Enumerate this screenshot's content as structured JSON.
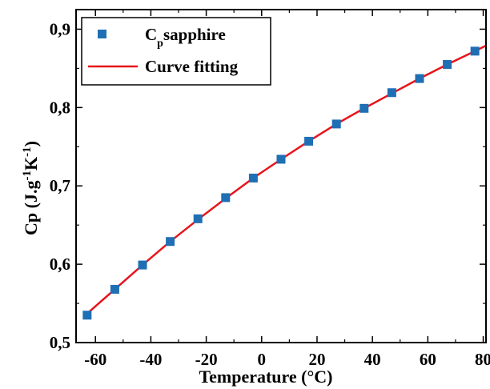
{
  "chart_data": {
    "type": "scatter",
    "xlabel": "Temperature (°C)",
    "ylabel_parts": [
      "Cp (J.g",
      "-1",
      "K",
      "-1",
      ")"
    ],
    "xlim": [
      -67,
      81
    ],
    "ylim": [
      0.5,
      0.925
    ],
    "xticks": [
      -60,
      -40,
      -20,
      0,
      20,
      40,
      60,
      80
    ],
    "xtick_labels": [
      "-60",
      "-40",
      "-20",
      "0",
      "20",
      "40",
      "60",
      "80"
    ],
    "yticks": [
      0.5,
      0.6,
      0.7,
      0.8,
      0.9
    ],
    "ytick_labels": [
      "0,5",
      "0,6",
      "0,7",
      "0,8",
      "0,9"
    ],
    "legend_position": "top-left",
    "series": [
      {
        "name_parts": [
          "C",
          "p",
          "sapphire"
        ],
        "kind": "markers",
        "color": "#1f6fb4",
        "x": [
          -63,
          -53,
          -43,
          -33,
          -23,
          -13,
          -3,
          7,
          17,
          27,
          37,
          47,
          57,
          67,
          77
        ],
        "y": [
          0.535,
          0.568,
          0.599,
          0.629,
          0.658,
          0.685,
          0.71,
          0.734,
          0.757,
          0.779,
          0.799,
          0.819,
          0.837,
          0.855,
          0.872
        ]
      },
      {
        "name": "Curve fitting",
        "kind": "line",
        "color": "#e8141b",
        "x": [
          -63,
          -53,
          -43,
          -33,
          -23,
          -13,
          -3,
          7,
          17,
          27,
          37,
          47,
          57,
          67,
          77,
          81
        ],
        "y": [
          0.537,
          0.568,
          0.599,
          0.629,
          0.657,
          0.684,
          0.71,
          0.734,
          0.757,
          0.779,
          0.799,
          0.818,
          0.837,
          0.855,
          0.872,
          0.879
        ]
      }
    ]
  }
}
